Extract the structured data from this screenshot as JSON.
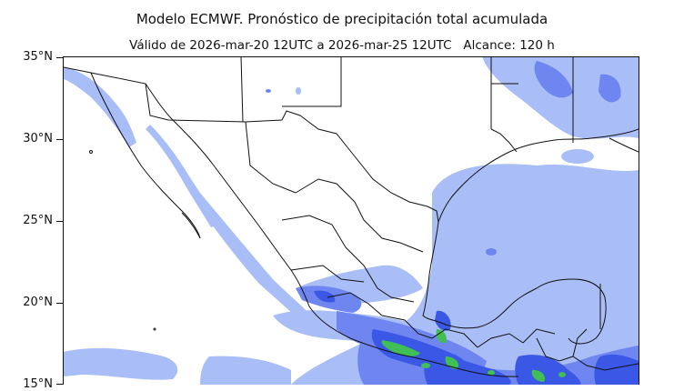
{
  "header": {
    "title": "Modelo ECMWF. Pronóstico de precipitación total acumulada",
    "validity": "Válido de 2026-mar-20 12UTC a 2026-mar-25 12UTC",
    "range": "Alcance: 120 h"
  },
  "map": {
    "lat_labels": [
      "35°N",
      "30°N",
      "25°N",
      "20°N",
      "15°N"
    ],
    "colors": {
      "land": "#ffffff",
      "light_precip": "#a9bdf7",
      "medium_precip": "#6f86f0",
      "heavy_precip": "#3b57e6",
      "extreme_precip": "#3fbf55",
      "borders": "#111111"
    }
  }
}
